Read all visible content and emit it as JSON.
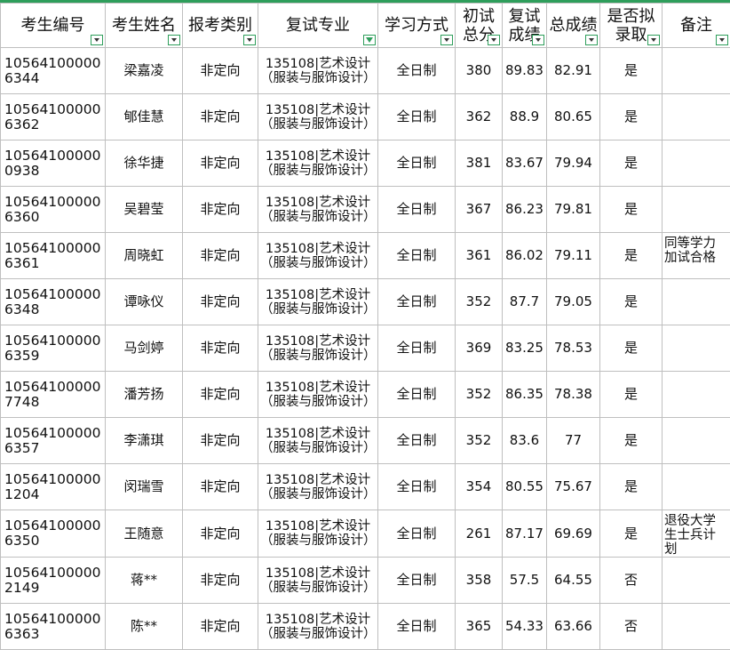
{
  "table": {
    "header": [
      "考生编号",
      "考生姓名",
      "报考类别",
      "复试专业",
      "学习方式",
      "初试总分",
      "复试成绩",
      "总成绩",
      "是否拟录取",
      "备注"
    ],
    "rows": [
      [
        "105641000006344",
        "梁嘉凌",
        "非定向",
        "135108|艺术设计\n（服装与服饰设计）",
        "全日制",
        "380",
        "89.83",
        "82.91",
        "是",
        null
      ],
      [
        "105641000006362",
        "郇佳慧",
        "非定向",
        "135108|艺术设计\n（服装与服饰设计）",
        "全日制",
        "362",
        "88.9",
        "80.65",
        "是",
        null
      ],
      [
        "105641000000938",
        "徐华捷",
        "非定向",
        "135108|艺术设计\n（服装与服饰设计）",
        "全日制",
        "381",
        "83.67",
        "79.94",
        "是",
        null
      ],
      [
        "105641000006360",
        "吴碧莹",
        "非定向",
        "135108|艺术设计\n（服装与服饰设计）",
        "全日制",
        "367",
        "86.23",
        "79.81",
        "是",
        null
      ],
      [
        "105641000006361",
        "周晓虹",
        "非定向",
        "135108|艺术设计\n（服装与服饰设计）",
        "全日制",
        "361",
        "86.02",
        "79.11",
        "是",
        "同等学力加试合格"
      ],
      [
        "105641000006348",
        "谭咏仪",
        "非定向",
        "135108|艺术设计\n（服装与服饰设计）",
        "全日制",
        "352",
        "87.7",
        "79.05",
        "是",
        null
      ],
      [
        "105641000006359",
        "马剑婷",
        "非定向",
        "135108|艺术设计\n（服装与服饰设计）",
        "全日制",
        "369",
        "83.25",
        "78.53",
        "是",
        null
      ],
      [
        "105641000007748",
        "潘芳扬",
        "非定向",
        "135108|艺术设计\n（服装与服饰设计）",
        "全日制",
        "352",
        "86.35",
        "78.38",
        "是",
        null
      ],
      [
        "105641000006357",
        "李潇琪",
        "非定向",
        "135108|艺术设计\n（服装与服饰设计）",
        "全日制",
        "352",
        "83.6",
        "77",
        "是",
        null
      ],
      [
        "105641000001204",
        "闵瑞雪",
        "非定向",
        "135108|艺术设计\n（服装与服饰设计）",
        "全日制",
        "354",
        "80.55",
        "75.67",
        "是",
        null
      ],
      [
        "105641000006350",
        "王随意",
        "非定向",
        "135108|艺术设计\n（服装与服饰设计）",
        "全日制",
        "261",
        "87.17",
        "69.69",
        "是",
        "退役大学生士兵计划"
      ],
      [
        "105641000002149",
        "蒋**",
        "非定向",
        "135108|艺术设计\n（服装与服饰设计）",
        "全日制",
        "358",
        "57.5",
        "64.55",
        "否",
        null
      ],
      [
        "105641000006363",
        "陈**",
        "非定向",
        "135108|艺术设计\n（服装与服饰设计）",
        "全日制",
        "365",
        "54.33",
        "63.66",
        "否",
        null
      ]
    ]
  }
}
